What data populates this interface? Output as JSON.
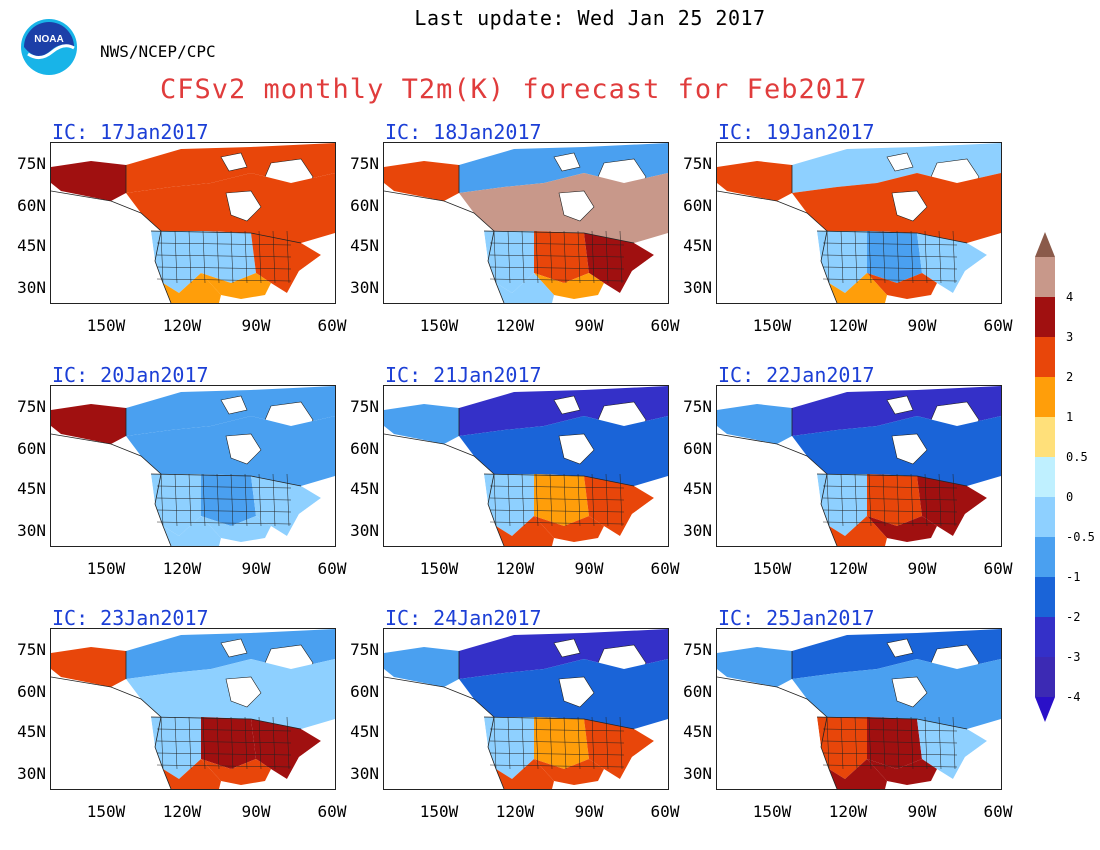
{
  "header": {
    "last_update": "Last update: Wed Jan 25 2017",
    "agency": "NWS/NCEP/CPC",
    "title": "CFSv2 monthly T2m(K) forecast for Feb2017",
    "logo_text": "NOAA"
  },
  "axes": {
    "lat_labels": [
      "75N",
      "60N",
      "45N",
      "30N"
    ],
    "lon_labels": [
      "150W",
      "120W",
      "90W",
      "60W"
    ]
  },
  "panels": [
    {
      "ic": "IC: 17Jan2017",
      "pattern": "warm-north"
    },
    {
      "ic": "IC: 18Jan2017",
      "pattern": "very-warm-canada"
    },
    {
      "ic": "IC: 19Jan2017",
      "pattern": "warm-mixed"
    },
    {
      "ic": "IC: 20Jan2017",
      "pattern": "cool"
    },
    {
      "ic": "IC: 21Jan2017",
      "pattern": "cold-north-warm-south"
    },
    {
      "ic": "IC: 22Jan2017",
      "pattern": "cold-north-hot-southeast"
    },
    {
      "ic": "IC: 23Jan2017",
      "pattern": "warm-central"
    },
    {
      "ic": "IC: 24Jan2017",
      "pattern": "cold-north-warm-south"
    },
    {
      "ic": "IC: 25Jan2017",
      "pattern": "warm-southwest"
    }
  ],
  "colorbar": {
    "labels": [
      "4",
      "3",
      "2",
      "1",
      "0.5",
      "0",
      "-0.5",
      "-1",
      "-2",
      "-3",
      "-4"
    ],
    "colors": [
      "#8a5a4a",
      "#c8988a",
      "#a01010",
      "#e8460a",
      "#ff9e0a",
      "#ffe07a",
      "#bff0ff",
      "#8ed0ff",
      "#4aa0f0",
      "#1a64d8",
      "#3430c8",
      "#3c2ab4",
      "#2a10c8"
    ]
  }
}
